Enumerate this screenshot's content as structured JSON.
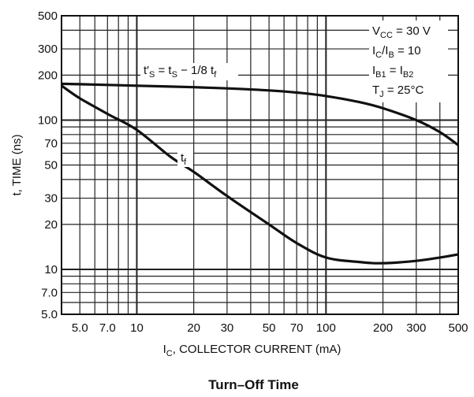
{
  "chart_data": {
    "type": "line",
    "title": "",
    "caption": "Turn–Off Time",
    "xlabel": "I",
    "xlabel_sub": "C",
    "xlabel_rest": ", COLLECTOR CURRENT (mA)",
    "ylabel": "t, TIME (ns)",
    "x_scale": "log",
    "y_scale": "log",
    "xlim": [
      4,
      500
    ],
    "ylim": [
      5,
      500
    ],
    "grid": true,
    "x_ticks": [
      5,
      7,
      10,
      20,
      30,
      50,
      70,
      100,
      200,
      300,
      500
    ],
    "x_tick_labels": [
      "5.0",
      "7.0",
      "10",
      "20",
      "30",
      "50",
      "70",
      "100",
      "200",
      "300",
      "500"
    ],
    "y_ticks": [
      5,
      7,
      10,
      20,
      30,
      50,
      70,
      100,
      200,
      300,
      500
    ],
    "y_tick_labels": [
      "5.0",
      "7.0",
      "10",
      "20",
      "30",
      "50",
      "70",
      "100",
      "200",
      "300",
      "500"
    ],
    "series": [
      {
        "name": "t'S = tS - 1/8 tF",
        "label_main": "t′",
        "label_sub1": "S",
        "label_mid": " = t",
        "label_sub2": "S",
        "label_end": " − 1/8 t",
        "label_sub3": "f",
        "x": [
          4,
          5,
          7,
          10,
          20,
          30,
          50,
          70,
          100,
          150,
          200,
          300,
          400,
          500
        ],
        "y": [
          175,
          174,
          172,
          170,
          166,
          163,
          158,
          153,
          145,
          132,
          120,
          100,
          83,
          68
        ]
      },
      {
        "name": "tf",
        "label_main": "t",
        "label_sub1": "f",
        "x": [
          4,
          5,
          7,
          10,
          15,
          20,
          30,
          50,
          70,
          100,
          150,
          200,
          300,
          400,
          500
        ],
        "y": [
          170,
          140,
          110,
          86,
          57,
          45,
          31,
          20,
          15,
          12,
          11.2,
          11,
          11.4,
          12,
          12.6
        ]
      }
    ],
    "conditions": [
      {
        "main": "V",
        "sub": "CC",
        "rest": " = 30 V"
      },
      {
        "main": "I",
        "sub": "C",
        "rest": "/I",
        "sub2": "B",
        "rest2": " = 10"
      },
      {
        "main": "I",
        "sub": "B1",
        "rest": " = I",
        "sub2": "B2",
        "rest2": ""
      },
      {
        "main": "T",
        "sub": "J",
        "rest": " = 25°C"
      }
    ]
  }
}
